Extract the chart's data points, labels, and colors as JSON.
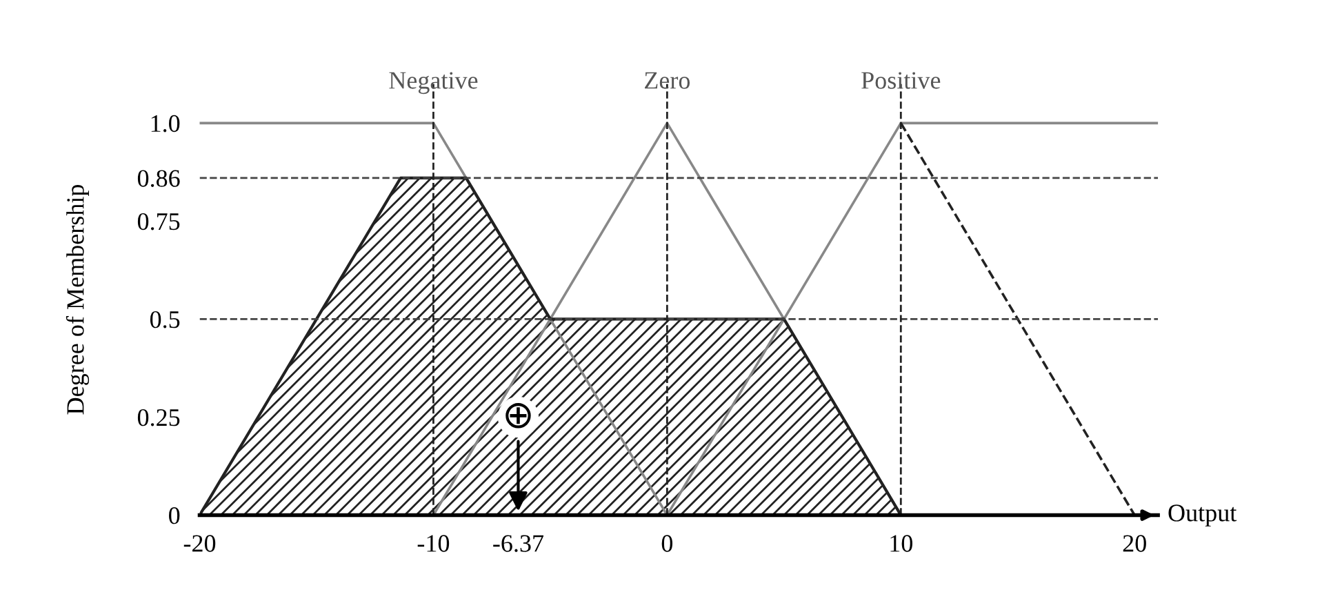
{
  "chart_data": {
    "type": "line",
    "ylabel": "Degree of Membership",
    "xlabel": "Output",
    "series": [
      {
        "name": "Negative",
        "color": "#888888",
        "x": [
          -20,
          -10,
          0
        ],
        "values": [
          1,
          1,
          0
        ]
      },
      {
        "name": "Zero",
        "color": "#888888",
        "x": [
          -10,
          0,
          10
        ],
        "values": [
          0,
          1,
          0
        ]
      },
      {
        "name": "Positive",
        "color": "#888888",
        "x": [
          0,
          10,
          21
        ],
        "values": [
          0,
          1,
          1
        ]
      },
      {
        "type": "line",
        "color": "#222222",
        "line_style": "dashed",
        "x": [
          10,
          20
        ],
        "values": [
          1,
          0
        ]
      },
      {
        "type": "area",
        "color": "#222222",
        "x": [
          -20,
          -11.4,
          -8.6,
          -5,
          5,
          10
        ],
        "values": [
          0,
          0.86,
          0.86,
          0.5,
          0.5,
          0
        ]
      }
    ],
    "xlim": [
      -20,
      21
    ],
    "ylim": [
      0,
      1.1
    ],
    "xticks": [
      -20,
      -10,
      -6.37,
      0,
      10,
      20
    ],
    "yticks": [
      0,
      0.25,
      0.5,
      0.75,
      0.86,
      {
        "value": 1,
        "label": "1.0"
      }
    ],
    "ref_lines": [
      {
        "axis": "y",
        "value": 0.86,
        "color": "#444444",
        "line_style": "dashed"
      },
      {
        "axis": "y",
        "value": 0.5,
        "color": "#444444",
        "line_style": "dashed"
      },
      {
        "axis": "x",
        "value": -10,
        "color": "#222222",
        "line_style": "dashed"
      },
      {
        "axis": "x",
        "value": 0,
        "color": "#222222",
        "line_style": "dashed"
      },
      {
        "axis": "x",
        "value": 10,
        "color": "#222222",
        "line_style": "dashed"
      }
    ],
    "annotations": [
      "⊕"
    ],
    "grid": false,
    "legend": false
  }
}
